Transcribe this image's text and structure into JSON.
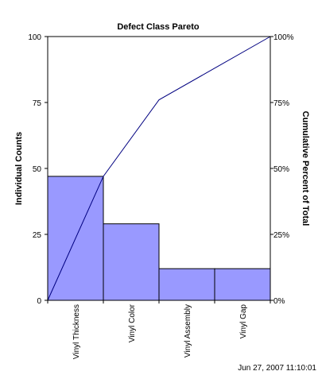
{
  "chart_data": {
    "type": "bar",
    "title": "Defect Class Pareto",
    "ylabel": "Individual Counts",
    "y2label": "Cumulative Percent of Total",
    "categories": [
      "Vinyl Thickness",
      "Vinyl Color",
      "Vinyl Assembly",
      "Vinyl Gap"
    ],
    "values": [
      47,
      29,
      12,
      12
    ],
    "cumulative_percent": [
      0,
      47,
      76,
      88,
      100
    ],
    "ylim": [
      0,
      100
    ],
    "y2lim": [
      0,
      100
    ],
    "yticks": [
      "0",
      "25",
      "50",
      "75",
      "100"
    ],
    "y2ticks": [
      "0%",
      "25%",
      "50%",
      "75%",
      "100%"
    ],
    "grid": false,
    "legend": "none",
    "bar_color": "#9999ff",
    "line_color": "#000080"
  },
  "footer": {
    "timestamp": "Jun 27, 2007 11:10:01"
  }
}
